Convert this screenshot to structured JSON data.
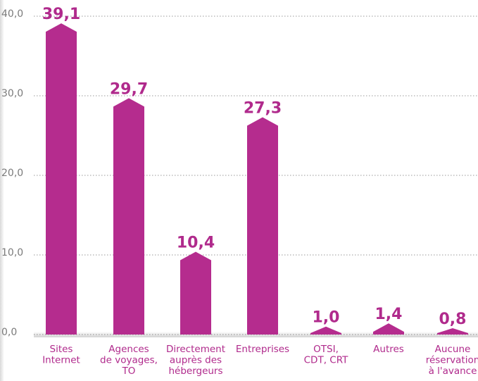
{
  "chart_data": {
    "type": "bar",
    "categories": [
      [
        "Sites",
        "Internet"
      ],
      [
        "Agences",
        "de voyages,",
        "TO"
      ],
      [
        "Directement",
        "auprès des",
        "hébergeurs"
      ],
      [
        "Entreprises"
      ],
      [
        "OTSI,",
        "CDT, CRT"
      ],
      [
        "Autres"
      ],
      [
        "Aucune",
        "réservation",
        "à l'avance"
      ]
    ],
    "values": [
      39.1,
      29.7,
      10.4,
      27.3,
      1.0,
      1.4,
      0.8
    ],
    "value_labels": [
      "39,1",
      "29,7",
      "10,4",
      "27,3",
      "1,0",
      "1,4",
      "0,8"
    ],
    "yticks": [
      0,
      10,
      20,
      30,
      40
    ],
    "ytick_labels": [
      "0,0",
      "10,0",
      "20,0",
      "30,0",
      "40,0"
    ],
    "ylim": [
      0,
      40
    ],
    "grid": true,
    "bar_color": "#b52c8e",
    "label_color": "#b02a8c"
  }
}
